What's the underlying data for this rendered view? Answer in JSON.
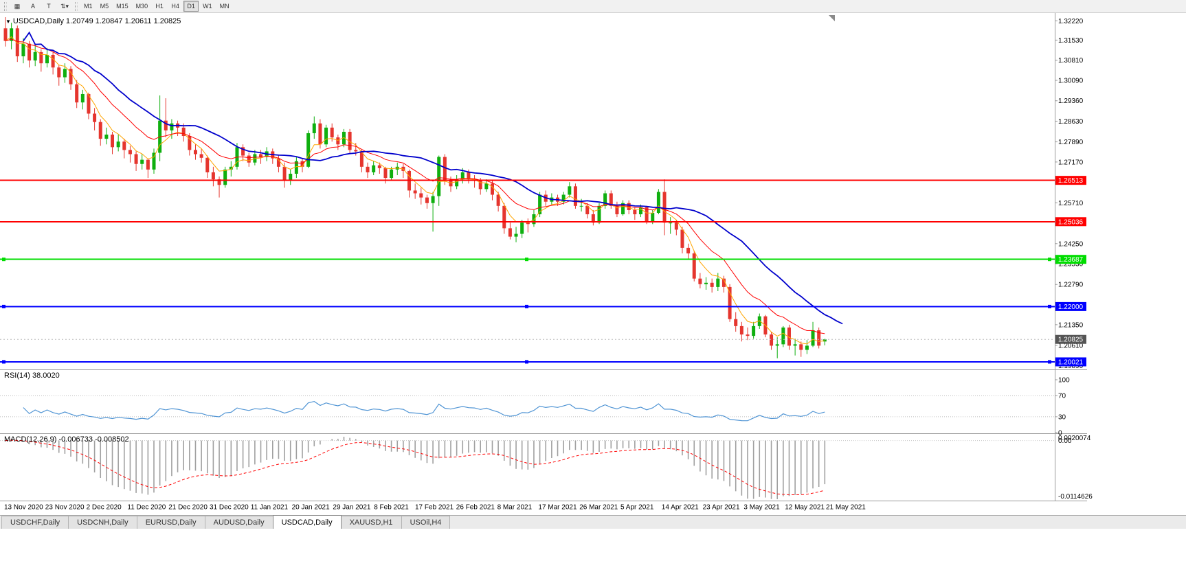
{
  "toolbar": {
    "tool_buttons": [
      {
        "name": "windows-grid-icon",
        "glyph": "▦"
      },
      {
        "name": "cursor-tool-button",
        "glyph": "A"
      },
      {
        "name": "text-tool-button",
        "glyph": "T"
      },
      {
        "name": "style-selector-button",
        "glyph": "⇅▾"
      }
    ],
    "timeframes": [
      "M1",
      "M5",
      "M15",
      "M30",
      "H1",
      "H4",
      "D1",
      "W1",
      "MN"
    ],
    "active_timeframe": "D1"
  },
  "chart": {
    "title": "USDCAD,Daily 1.20749 1.20847 1.20611 1.20825"
  },
  "rsi_panel": {
    "label": "RSI(14) 38.0020"
  },
  "macd_panel": {
    "label": "MACD(12,26,9) -0.006733 -0.008502"
  },
  "tabs": {
    "items": [
      "USDCHF,Daily",
      "USDCNH,Daily",
      "EURUSD,Daily",
      "AUDUSD,Daily",
      "USDCAD,Daily",
      "XAUUSD,H1",
      "USOil,H4"
    ],
    "active": "USDCAD,Daily"
  },
  "chart_data": {
    "type": "candlestick",
    "symbol": "USDCAD",
    "timeframe": "Daily",
    "ohlc_display": {
      "open": "1.20749",
      "high": "1.20847",
      "low": "1.20611",
      "close": "1.20825"
    },
    "price_range": {
      "min": 1.1975,
      "max": 1.3235
    },
    "colors": {
      "bull": "#0faf0f",
      "bear": "#e5352e",
      "separator": "#999999",
      "axis_text": "#000000"
    },
    "axis_labels": [
      "1.32220",
      "1.31530",
      "1.30810",
      "1.30090",
      "1.29360",
      "1.28630",
      "1.27890",
      "1.27170",
      "1.25710",
      "1.24250",
      "1.23530",
      "1.22790",
      "1.21350",
      "1.20610",
      "1.19890"
    ],
    "date_labels": [
      "13 Nov 2020",
      "23 Nov 2020",
      "2 Dec 2020",
      "11 Dec 2020",
      "21 Dec 2020",
      "31 Dec 2020",
      "11 Jan 2021",
      "20 Jan 2021",
      "29 Jan 2021",
      "8 Feb 2021",
      "17 Feb 2021",
      "26 Feb 2021",
      "8 Mar 2021",
      "17 Mar 2021",
      "26 Mar 2021",
      "5 Apr 2021",
      "14 Apr 2021",
      "23 Apr 2021",
      "3 May 2021",
      "12 May 2021",
      "21 May 2021"
    ],
    "moving_averages": [
      {
        "name": "slow-ma",
        "type": "wma",
        "period": 30,
        "color": "#0000cc",
        "width": 1.8,
        "shift": 3
      },
      {
        "name": "medium-ma",
        "type": "ema",
        "period": 13,
        "color": "#ff0000",
        "width": 1,
        "shift": 0
      },
      {
        "name": "fast-ma",
        "type": "ema",
        "period": 5,
        "color": "#ffa500",
        "width": 1,
        "shift": 0
      }
    ],
    "hlines": [
      {
        "value": 1.26513,
        "label": "1.26513",
        "color": "#ff0000",
        "width": 2,
        "handles": false
      },
      {
        "value": 1.25036,
        "label": "1.25036",
        "color": "#ff0000",
        "width": 2,
        "handles": false
      },
      {
        "value": 1.23687,
        "label": "1.23687",
        "color": "#00dd00",
        "width": 2,
        "handles": true
      },
      {
        "value": 1.22,
        "label": "1.22000",
        "color": "#0000ff",
        "width": 2,
        "handles": true
      },
      {
        "value": 1.20021,
        "label": "1.20021",
        "color": "#0000ff",
        "width": 2,
        "handles": true
      }
    ],
    "current_price": {
      "value": 1.20825,
      "label": "1.20825",
      "badge_color": "#555555"
    },
    "rsi": {
      "label": "RSI(14) 38.0020",
      "period": 14,
      "levels": [
        100,
        70,
        30,
        0
      ],
      "line_color": "#4f94d4"
    },
    "macd": {
      "label": "MACD(12,26,9) -0.006733 -0.008502",
      "fast": 12,
      "slow": 26,
      "signal": 9,
      "axis_labels": [
        "0.0020074",
        "0.00",
        "-0.0114626"
      ],
      "hist_color": "#a0a0a0",
      "signal_color": "#ff0000"
    },
    "candles": [
      [
        1.3195,
        1.3235,
        1.313,
        1.315
      ],
      [
        1.315,
        1.3215,
        1.312,
        1.3195
      ],
      [
        1.3195,
        1.3205,
        1.3075,
        1.3095
      ],
      [
        1.3095,
        1.316,
        1.307,
        1.314
      ],
      [
        1.314,
        1.315,
        1.3055,
        1.308
      ],
      [
        1.308,
        1.3135,
        1.306,
        1.311
      ],
      [
        1.311,
        1.312,
        1.304,
        1.307
      ],
      [
        1.307,
        1.3125,
        1.3055,
        1.31
      ],
      [
        1.31,
        1.311,
        1.303,
        1.3055
      ],
      [
        1.3055,
        1.3065,
        1.299,
        1.302
      ],
      [
        1.302,
        1.307,
        1.3,
        1.305
      ],
      [
        1.305,
        1.306,
        1.2975,
        1.2995
      ],
      [
        1.2995,
        1.301,
        1.291,
        1.293
      ],
      [
        1.293,
        1.2975,
        1.2905,
        1.296
      ],
      [
        1.296,
        1.2965,
        1.287,
        1.289
      ],
      [
        1.289,
        1.291,
        1.283,
        1.286
      ],
      [
        1.286,
        1.287,
        1.2775,
        1.28
      ],
      [
        1.28,
        1.284,
        1.278,
        1.2815
      ],
      [
        1.2815,
        1.2825,
        1.2745,
        1.277
      ],
      [
        1.277,
        1.2815,
        1.2755,
        1.279
      ],
      [
        1.279,
        1.28,
        1.273,
        1.276
      ],
      [
        1.276,
        1.2775,
        1.2715,
        1.2745
      ],
      [
        1.2745,
        1.2755,
        1.2685,
        1.271
      ],
      [
        1.271,
        1.2745,
        1.269,
        1.2725
      ],
      [
        1.2725,
        1.273,
        1.266,
        1.269
      ],
      [
        1.269,
        1.2765,
        1.2675,
        1.275
      ],
      [
        1.275,
        1.2955,
        1.272,
        1.2865
      ],
      [
        1.2865,
        1.2945,
        1.2805,
        1.283
      ],
      [
        1.283,
        1.287,
        1.28,
        1.2855
      ],
      [
        1.2855,
        1.2865,
        1.281,
        1.284
      ],
      [
        1.284,
        1.2855,
        1.279,
        1.281
      ],
      [
        1.281,
        1.282,
        1.274,
        1.276
      ],
      [
        1.276,
        1.278,
        1.2725,
        1.2745
      ],
      [
        1.2745,
        1.2765,
        1.2715,
        1.2732
      ],
      [
        1.2732,
        1.274,
        1.266,
        1.268
      ],
      [
        1.268,
        1.27,
        1.263,
        1.2655
      ],
      [
        1.2655,
        1.2665,
        1.259,
        1.2635
      ],
      [
        1.2635,
        1.27,
        1.2625,
        1.269
      ],
      [
        1.269,
        1.272,
        1.2665,
        1.27
      ],
      [
        1.27,
        1.2785,
        1.269,
        1.277
      ],
      [
        1.277,
        1.278,
        1.272,
        1.274
      ],
      [
        1.274,
        1.275,
        1.27,
        1.2715
      ],
      [
        1.2715,
        1.276,
        1.2705,
        1.2745
      ],
      [
        1.2745,
        1.276,
        1.271,
        1.2735
      ],
      [
        1.2735,
        1.277,
        1.272,
        1.2755
      ],
      [
        1.2755,
        1.2765,
        1.271,
        1.273
      ],
      [
        1.273,
        1.274,
        1.268,
        1.27
      ],
      [
        1.27,
        1.2715,
        1.2625,
        1.265
      ],
      [
        1.265,
        1.269,
        1.2635,
        1.2675
      ],
      [
        1.2675,
        1.2735,
        1.266,
        1.272
      ],
      [
        1.272,
        1.273,
        1.268,
        1.27
      ],
      [
        1.27,
        1.283,
        1.2695,
        1.282
      ],
      [
        1.282,
        1.288,
        1.28,
        1.2855
      ],
      [
        1.2855,
        1.287,
        1.2765,
        1.278
      ],
      [
        1.278,
        1.285,
        1.277,
        1.284
      ],
      [
        1.284,
        1.2855,
        1.279,
        1.2805
      ],
      [
        1.2805,
        1.2815,
        1.276,
        1.278
      ],
      [
        1.278,
        1.2835,
        1.277,
        1.2825
      ],
      [
        1.2825,
        1.2835,
        1.2745,
        1.276
      ],
      [
        1.276,
        1.2785,
        1.274,
        1.2755
      ],
      [
        1.2755,
        1.276,
        1.268,
        1.27
      ],
      [
        1.27,
        1.2715,
        1.266,
        1.268
      ],
      [
        1.268,
        1.272,
        1.267,
        1.2705
      ],
      [
        1.2705,
        1.2715,
        1.2675,
        1.2695
      ],
      [
        1.2695,
        1.27,
        1.264,
        1.266
      ],
      [
        1.266,
        1.27,
        1.265,
        1.269
      ],
      [
        1.269,
        1.2715,
        1.267,
        1.27
      ],
      [
        1.27,
        1.271,
        1.266,
        1.2685
      ],
      [
        1.2685,
        1.269,
        1.259,
        1.2615
      ],
      [
        1.2615,
        1.264,
        1.2585,
        1.2605
      ],
      [
        1.2605,
        1.2625,
        1.2565,
        1.259
      ],
      [
        1.259,
        1.26,
        1.255,
        1.257
      ],
      [
        1.257,
        1.261,
        1.2468,
        1.2595
      ],
      [
        1.2595,
        1.274,
        1.256,
        1.2735
      ],
      [
        1.2735,
        1.2745,
        1.2635,
        1.265
      ],
      [
        1.265,
        1.2665,
        1.261,
        1.263
      ],
      [
        1.263,
        1.267,
        1.262,
        1.2655
      ],
      [
        1.2655,
        1.2695,
        1.264,
        1.268
      ],
      [
        1.268,
        1.269,
        1.264,
        1.2655
      ],
      [
        1.2655,
        1.267,
        1.2625,
        1.265
      ],
      [
        1.265,
        1.266,
        1.26,
        1.262
      ],
      [
        1.262,
        1.2655,
        1.261,
        1.264
      ],
      [
        1.264,
        1.265,
        1.258,
        1.26
      ],
      [
        1.26,
        1.261,
        1.254,
        1.256
      ],
      [
        1.256,
        1.257,
        1.246,
        1.248
      ],
      [
        1.248,
        1.25,
        1.244,
        1.245
      ],
      [
        1.245,
        1.2485,
        1.243,
        1.246
      ],
      [
        1.246,
        1.251,
        1.2445,
        1.25
      ],
      [
        1.25,
        1.2515,
        1.2465,
        1.2495
      ],
      [
        1.2495,
        1.2545,
        1.2485,
        1.253
      ],
      [
        1.253,
        1.261,
        1.252,
        1.26
      ],
      [
        1.26,
        1.2615,
        1.256,
        1.2575
      ],
      [
        1.2575,
        1.2605,
        1.2565,
        1.259
      ],
      [
        1.259,
        1.26,
        1.256,
        1.2575
      ],
      [
        1.2575,
        1.261,
        1.2565,
        1.26
      ],
      [
        1.26,
        1.2645,
        1.259,
        1.263
      ],
      [
        1.263,
        1.264,
        1.255,
        1.256
      ],
      [
        1.256,
        1.2585,
        1.254,
        1.256
      ],
      [
        1.256,
        1.257,
        1.2515,
        1.253
      ],
      [
        1.253,
        1.2545,
        1.249,
        1.25
      ],
      [
        1.25,
        1.257,
        1.2495,
        1.256
      ],
      [
        1.256,
        1.2615,
        1.255,
        1.2605
      ],
      [
        1.2605,
        1.2615,
        1.255,
        1.256
      ],
      [
        1.256,
        1.2575,
        1.252,
        1.253
      ],
      [
        1.253,
        1.258,
        1.2525,
        1.257
      ],
      [
        1.257,
        1.258,
        1.253,
        1.2545
      ],
      [
        1.2545,
        1.2555,
        1.251,
        1.253
      ],
      [
        1.253,
        1.2565,
        1.252,
        1.2555
      ],
      [
        1.2555,
        1.256,
        1.2495,
        1.2505
      ],
      [
        1.2505,
        1.2545,
        1.2495,
        1.2535
      ],
      [
        1.2535,
        1.262,
        1.253,
        1.261
      ],
      [
        1.261,
        1.2655,
        1.2455,
        1.25
      ],
      [
        1.25,
        1.252,
        1.246,
        1.25
      ],
      [
        1.25,
        1.251,
        1.2455,
        1.2475
      ],
      [
        1.2475,
        1.2485,
        1.239,
        1.241
      ],
      [
        1.241,
        1.2425,
        1.237,
        1.239
      ],
      [
        1.239,
        1.24,
        1.229,
        1.23
      ],
      [
        1.23,
        1.232,
        1.2265,
        1.228
      ],
      [
        1.228,
        1.2305,
        1.226,
        1.2285
      ],
      [
        1.2285,
        1.23,
        1.225,
        1.227
      ],
      [
        1.227,
        1.232,
        1.2255,
        1.23
      ],
      [
        1.23,
        1.231,
        1.225,
        1.227
      ],
      [
        1.227,
        1.228,
        1.2145,
        1.2155
      ],
      [
        1.2155,
        1.218,
        1.211,
        1.213
      ],
      [
        1.213,
        1.2145,
        1.2075,
        1.21
      ],
      [
        1.21,
        1.2125,
        1.208,
        1.2095
      ],
      [
        1.2095,
        1.2145,
        1.2085,
        1.213
      ],
      [
        1.213,
        1.2175,
        1.212,
        1.2165
      ],
      [
        1.2165,
        1.217,
        1.209,
        1.21
      ],
      [
        1.21,
        1.211,
        1.2045,
        1.206
      ],
      [
        1.206,
        1.209,
        1.2015,
        1.2065
      ],
      [
        1.2065,
        1.213,
        1.2055,
        1.2125
      ],
      [
        1.2125,
        1.2135,
        1.2045,
        1.206
      ],
      [
        1.206,
        1.2085,
        1.2025,
        1.2065
      ],
      [
        1.2065,
        1.2075,
        1.202,
        1.2045
      ],
      [
        1.2045,
        1.208,
        1.203,
        1.206
      ],
      [
        1.206,
        1.2145,
        1.2055,
        1.2115
      ],
      [
        1.2115,
        1.2125,
        1.205,
        1.206
      ],
      [
        1.20749,
        1.20847,
        1.20611,
        1.20825
      ]
    ]
  }
}
